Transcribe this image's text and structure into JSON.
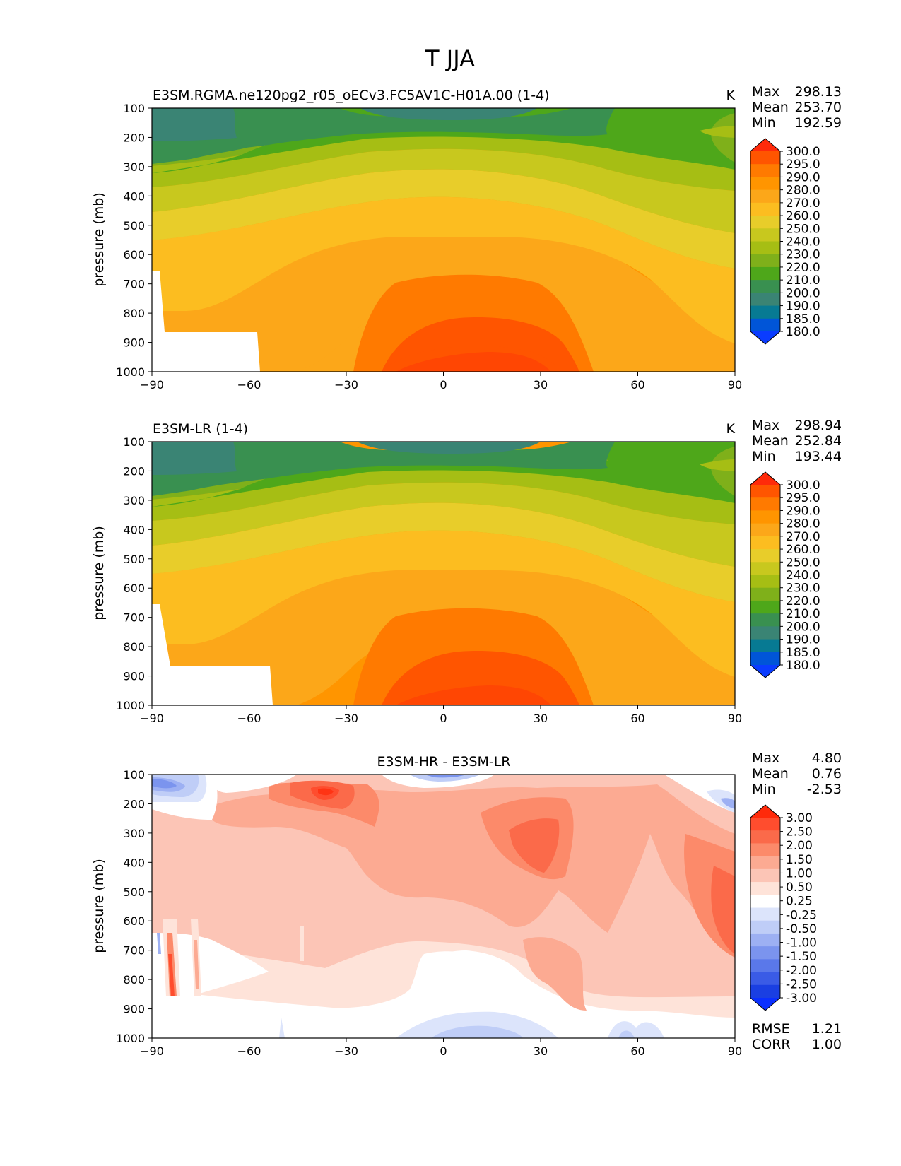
{
  "figure_title": "T JJA",
  "chart_data": [
    {
      "type": "contour",
      "title_left": "E3SM.RGMA.ne120pg2_r05_oECv3.FC5AV1C-H01A.00 (1-4)",
      "title_center": "",
      "units": "K",
      "ylabel": "pressure (mb)",
      "xlabel": "",
      "xlim": [
        -90,
        90
      ],
      "ylim": [
        1000,
        100
      ],
      "xticks": [
        "−90",
        "−60",
        "−30",
        "0",
        "30",
        "60",
        "90"
      ],
      "yticks": [
        "100",
        "200",
        "300",
        "400",
        "500",
        "600",
        "700",
        "800",
        "900",
        "1000"
      ],
      "stats": [
        {
          "label": "Max",
          "value": "298.13"
        },
        {
          "label": "Mean",
          "value": "253.70"
        },
        {
          "label": "Min",
          "value": "192.59"
        }
      ],
      "colorbar_labels": [
        "300.0",
        "295.0",
        "290.0",
        "280.0",
        "270.0",
        "260.0",
        "250.0",
        "240.0",
        "230.0",
        "220.0",
        "210.0",
        "200.0",
        "190.0",
        "185.0",
        "180.0"
      ],
      "colorbar_colors": [
        "#ff2a0a",
        "#ff5500",
        "#ff7a00",
        "#ff9500",
        "#fca719",
        "#fcbd20",
        "#e8cd2a",
        "#c8c81e",
        "#a6be14",
        "#7fb01a",
        "#4ea71a",
        "#399050",
        "#3a8474",
        "#077a93",
        "#0055d8",
        "#0a3cff"
      ],
      "bottom_stats": []
    },
    {
      "type": "contour",
      "title_left": "E3SM-LR (1-4)",
      "title_center": "",
      "units": "K",
      "ylabel": "pressure (mb)",
      "xlabel": "",
      "xlim": [
        -90,
        90
      ],
      "ylim": [
        1000,
        100
      ],
      "xticks": [
        "−90",
        "−60",
        "−30",
        "0",
        "30",
        "60",
        "90"
      ],
      "yticks": [
        "100",
        "200",
        "300",
        "400",
        "500",
        "600",
        "700",
        "800",
        "900",
        "1000"
      ],
      "stats": [
        {
          "label": "Max",
          "value": "298.94"
        },
        {
          "label": "Mean",
          "value": "252.84"
        },
        {
          "label": "Min",
          "value": "193.44"
        }
      ],
      "colorbar_labels": [
        "300.0",
        "295.0",
        "290.0",
        "280.0",
        "270.0",
        "260.0",
        "250.0",
        "240.0",
        "230.0",
        "220.0",
        "210.0",
        "200.0",
        "190.0",
        "185.0",
        "180.0"
      ],
      "colorbar_colors": [
        "#ff2a0a",
        "#ff5500",
        "#ff7a00",
        "#ff9500",
        "#fca719",
        "#fcbd20",
        "#e8cd2a",
        "#c8c81e",
        "#a6be14",
        "#7fb01a",
        "#4ea71a",
        "#399050",
        "#3a8474",
        "#077a93",
        "#0055d8",
        "#0a3cff"
      ],
      "bottom_stats": []
    },
    {
      "type": "contour",
      "title_left": "",
      "title_center": "E3SM-HR - E3SM-LR",
      "units": "",
      "ylabel": "pressure (mb)",
      "xlabel": "",
      "xlim": [
        -90,
        90
      ],
      "ylim": [
        1000,
        100
      ],
      "xticks": [
        "−90",
        "−60",
        "−30",
        "0",
        "30",
        "60",
        "90"
      ],
      "yticks": [
        "100",
        "200",
        "300",
        "400",
        "500",
        "600",
        "700",
        "800",
        "900",
        "1000"
      ],
      "stats": [
        {
          "label": "Max",
          "value": "4.80"
        },
        {
          "label": "Mean",
          "value": "0.76"
        },
        {
          "label": "Min",
          "value": "-2.53"
        }
      ],
      "colorbar_labels": [
        "3.00",
        "2.50",
        "2.00",
        "1.50",
        "1.00",
        "0.50",
        "0.25",
        "-0.25",
        "-0.50",
        "-1.00",
        "-1.50",
        "-2.00",
        "-2.50",
        "-3.00"
      ],
      "colorbar_colors": [
        "#ff2a0a",
        "#ff4d2e",
        "#fb6a4a",
        "#fc8a6a",
        "#fcaa92",
        "#fcc5b6",
        "#fee3d9",
        "#ffffff",
        "#dce4fb",
        "#bfcdf7",
        "#9db0f3",
        "#7b94ee",
        "#5a78ea",
        "#3a5be6",
        "#1a3fe2",
        "#0a2fff"
      ],
      "bottom_stats": [
        {
          "label": "RMSE",
          "value": "1.21"
        },
        {
          "label": "CORR",
          "value": "1.00"
        }
      ]
    }
  ]
}
